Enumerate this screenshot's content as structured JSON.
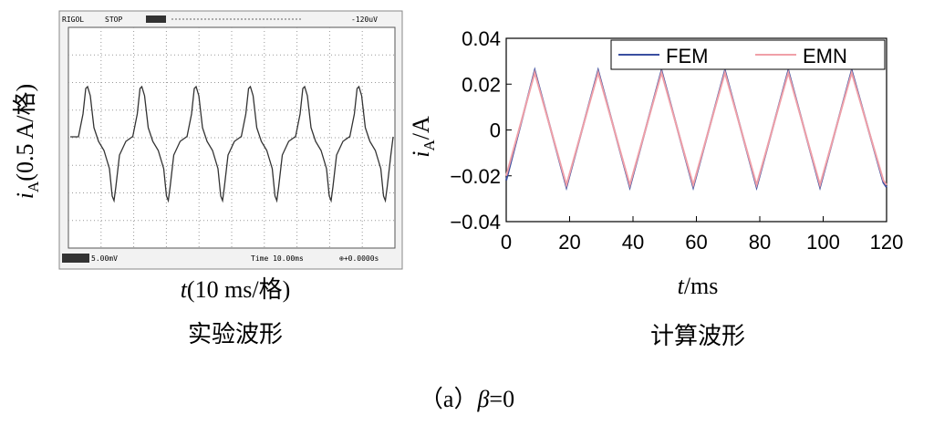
{
  "scope": {
    "brand": "RIGOL",
    "status": "STOP",
    "trigger": "-120uV",
    "channel": "5.00mV",
    "time": "Time 10.00ms",
    "offset": "⊕+0.0000s",
    "ylabel_parts": [
      "i",
      "A",
      "(0.5 A/格)"
    ],
    "xlabel_parts": [
      "t",
      "(10 ms/格)"
    ],
    "caption": "实验波形"
  },
  "chart_data": {
    "type": "line",
    "caption": "计算波形",
    "ylabel_parts": [
      "i",
      "A",
      "/A"
    ],
    "xlabel_parts": [
      "t",
      "/ms"
    ],
    "x": [
      0,
      9,
      19,
      29,
      39,
      49,
      59,
      69,
      79,
      89,
      99,
      109,
      119,
      120
    ],
    "series": [
      {
        "name": "FEM",
        "color": "#3a4fa0",
        "values": [
          -0.022,
          0.026,
          -0.025,
          0.026,
          -0.025,
          0.026,
          -0.025,
          0.026,
          -0.025,
          0.026,
          -0.025,
          0.026,
          -0.023,
          -0.025
        ]
      },
      {
        "name": "EMN",
        "color": "#f0a0a8",
        "values": [
          -0.02,
          0.025,
          -0.024,
          0.025,
          -0.024,
          0.025,
          -0.024,
          0.025,
          -0.024,
          0.025,
          -0.024,
          0.025,
          -0.022,
          -0.024
        ]
      }
    ],
    "xlim": [
      0,
      120
    ],
    "xticks": [
      0,
      20,
      40,
      60,
      80,
      100,
      120
    ],
    "ylim": [
      -0.04,
      0.04
    ],
    "yticks": [
      {
        "value": -0.04,
        "label": "−0.04"
      },
      {
        "value": -0.02,
        "label": "−0.02"
      },
      0,
      0.02,
      0.04
    ],
    "legend": "upper right",
    "grid": false
  },
  "figure_caption": {
    "prefix": "（a）",
    "symbol": "β",
    "rest": "=0"
  }
}
